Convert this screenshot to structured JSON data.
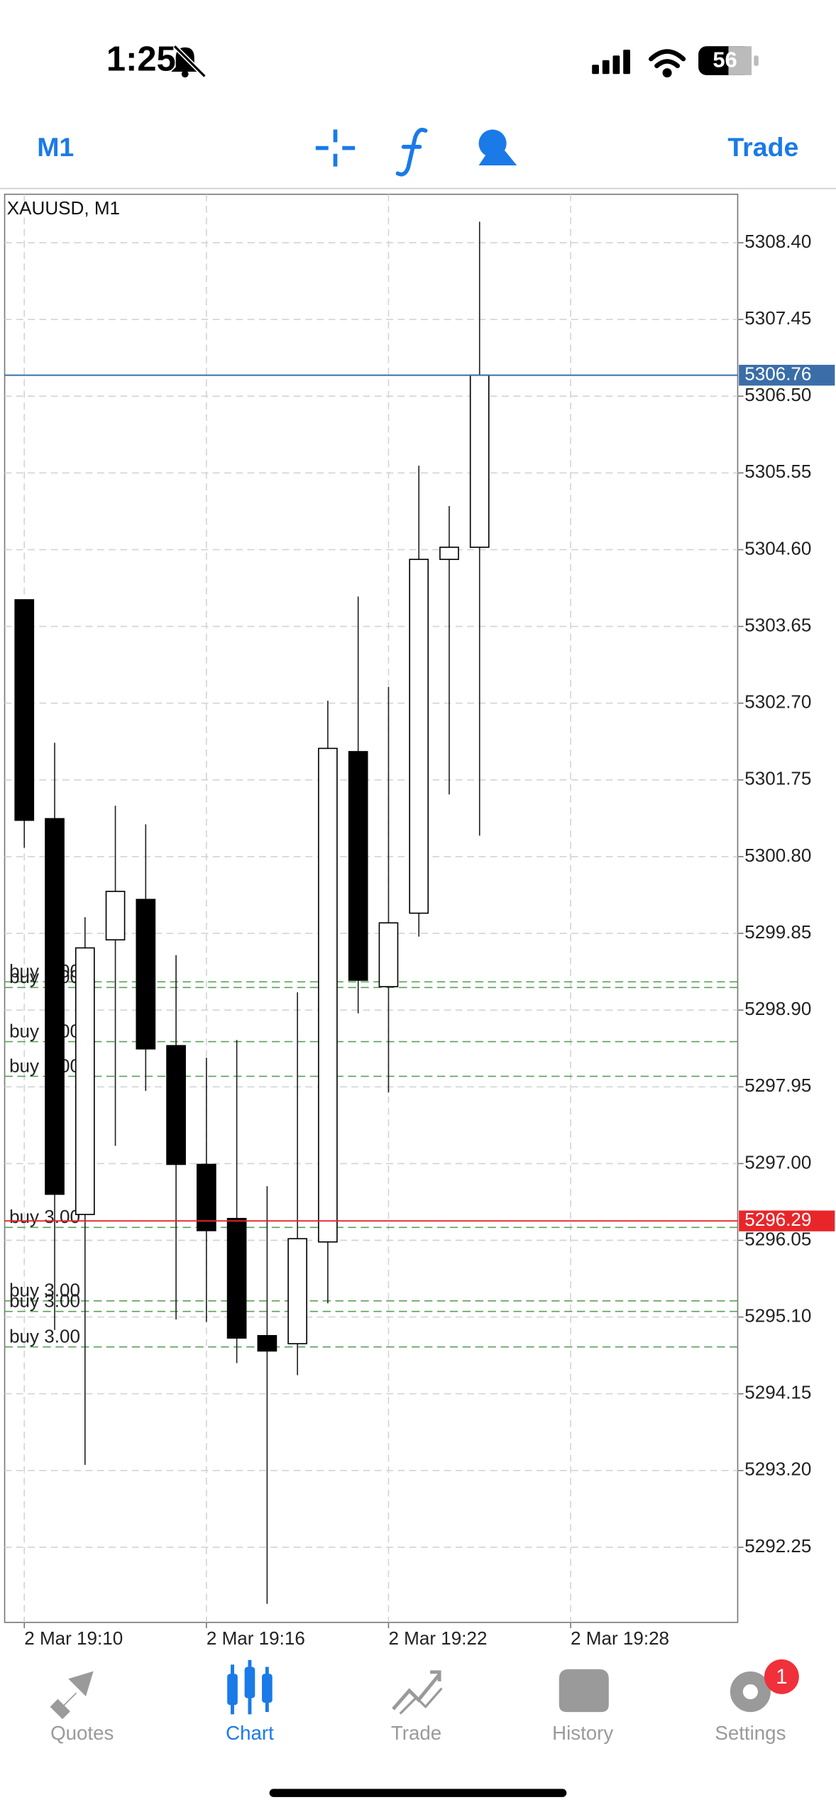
{
  "status_bar": {
    "time": "1:25",
    "battery": "56"
  },
  "toolbar": {
    "timeframe": "M1",
    "action": "Trade"
  },
  "chart_data": {
    "type": "candlestick",
    "title": "XAUUSD, M1",
    "x": [
      "2 Mar 19:10",
      "2 Mar 19:11",
      "2 Mar 19:12",
      "2 Mar 19:13",
      "2 Mar 19:14",
      "2 Mar 19:15",
      "2 Mar 19:16",
      "2 Mar 19:17",
      "2 Mar 19:18",
      "2 Mar 19:19",
      "2 Mar 19:20",
      "2 Mar 19:21",
      "2 Mar 19:22",
      "2 Mar 19:23",
      "2 Mar 19:24",
      "2 Mar 19:25"
    ],
    "open": [
      5303.98,
      5301.27,
      5296.37,
      5299.77,
      5300.27,
      5298.46,
      5296.99,
      5296.32,
      5294.87,
      5294.77,
      5296.03,
      5302.1,
      5299.19,
      5300.1,
      5304.48,
      5304.63
    ],
    "high": [
      5303.98,
      5302.21,
      5300.05,
      5301.43,
      5301.2,
      5299.58,
      5298.31,
      5298.53,
      5296.72,
      5299.12,
      5302.73,
      5304.02,
      5302.9,
      5305.64,
      5305.14,
      5308.66
    ],
    "low": [
      5300.91,
      5294.94,
      5293.27,
      5297.22,
      5297.9,
      5295.07,
      5295.04,
      5294.53,
      5291.55,
      5294.38,
      5295.27,
      5298.86,
      5297.88,
      5299.81,
      5301.57,
      5301.06
    ],
    "close": [
      5301.25,
      5296.62,
      5299.67,
      5300.37,
      5298.42,
      5296.99,
      5296.17,
      5294.84,
      5294.68,
      5296.07,
      5302.14,
      5299.27,
      5299.98,
      5304.48,
      5304.63,
      5306.76
    ],
    "xticks": [
      "2 Mar 19:10",
      "2 Mar 19:16",
      "2 Mar 19:22",
      "2 Mar 19:28"
    ],
    "ylim": [
      5291.32,
      5309.0
    ],
    "yticks": [
      {
        "value": 5308.4,
        "label": "5308.40"
      },
      5307.45,
      {
        "value": 5306.5,
        "label": "5306.50"
      },
      5305.55,
      {
        "value": 5304.6,
        "label": "5304.60"
      },
      5303.65,
      {
        "value": 5302.7,
        "label": "5302.70"
      },
      5301.75,
      {
        "value": 5300.8,
        "label": "5300.80"
      },
      5299.85,
      {
        "value": 5298.9,
        "label": "5298.90"
      },
      5297.95,
      {
        "value": 5297,
        "label": "5297.00"
      },
      5296.05,
      {
        "value": 5295.1,
        "label": "5295.10"
      },
      5294.15,
      {
        "value": 5293.2,
        "label": "5293.20"
      },
      5292.25
    ],
    "grid": true,
    "price_lines": [
      {
        "value": 5306.76,
        "color": "#3b6ea8"
      },
      {
        "value": 5296.29,
        "color": "#e8262a"
      }
    ],
    "orders": [
      {
        "label": "buy 3.00",
        "price": 5299.25
      },
      {
        "label": "buy 3.00",
        "price": 5299.18
      },
      {
        "label": "buy 3.00",
        "price": 5298.51
      },
      {
        "label": "buy 3.00",
        "price": 5298.08
      },
      {
        "label": "buy 3.00",
        "price": 5296.21
      },
      {
        "label": "buy 3.00",
        "price": 5295.3
      },
      {
        "label": "buy 3.00",
        "price": 5295.17
      },
      {
        "label": "buy 3.00",
        "price": 5294.73
      }
    ]
  },
  "tabs": [
    {
      "label": "Quotes"
    },
    {
      "label": "Chart",
      "active": true
    },
    {
      "label": "Trade"
    },
    {
      "label": "History"
    },
    {
      "label": "Settings",
      "badge": "1"
    }
  ]
}
